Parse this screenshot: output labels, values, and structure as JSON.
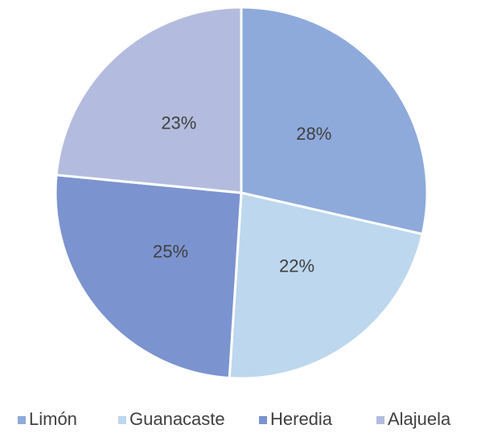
{
  "chart_data": {
    "type": "pie",
    "categories": [
      "Limón",
      "Guanacaste",
      "Heredia",
      "Alajuela"
    ],
    "values": [
      28,
      22,
      25,
      23
    ],
    "value_labels": [
      "28%",
      "22%",
      "25%",
      "23%"
    ],
    "colors": [
      "#8eaadb",
      "#bdd7ee",
      "#7b93cf",
      "#b3bcde"
    ],
    "legend": "bottom"
  }
}
